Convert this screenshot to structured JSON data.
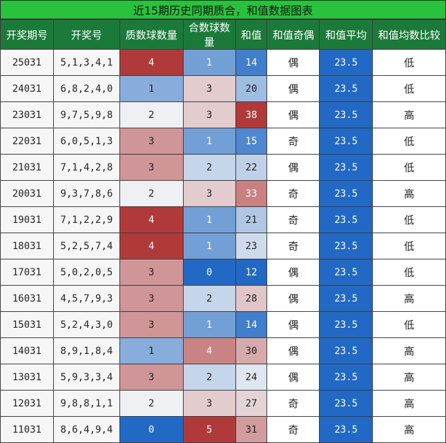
{
  "title": "近15期历史同期质合，和值数据图表",
  "columns": [
    "开奖期号",
    "开奖号",
    "质数球数量",
    "合数球数量",
    "和值",
    "和值奇偶",
    "和值平均",
    "和值均数比较"
  ],
  "colors": {
    "header_bg": "#1b7a3a",
    "title_bg": "#28c23c",
    "avg_bg": "#2169c5",
    "scale_low": "#2169c5",
    "scale_mid": "#eef0f3",
    "scale_high": "#b03a3a"
  },
  "chart_data": {
    "type": "table",
    "title": "近15期历史同期质合，和值数据图表",
    "columns": [
      "开奖期号",
      "开奖号",
      "质数球数量",
      "合数球数量",
      "和值",
      "和值奇偶",
      "和值平均",
      "和值均数比较"
    ],
    "rows": [
      {
        "issue": "25031",
        "numbers": "5,1,3,4,1",
        "prime": 4,
        "composite": 1,
        "sum": 14,
        "parity": "偶",
        "avg": "23.5",
        "compare": "低"
      },
      {
        "issue": "24031",
        "numbers": "6,8,2,4,0",
        "prime": 1,
        "composite": 3,
        "sum": 20,
        "parity": "偶",
        "avg": "23.5",
        "compare": "低"
      },
      {
        "issue": "23031",
        "numbers": "9,7,5,9,8",
        "prime": 2,
        "composite": 3,
        "sum": 38,
        "parity": "偶",
        "avg": "23.5",
        "compare": "高"
      },
      {
        "issue": "22031",
        "numbers": "6,0,5,1,3",
        "prime": 3,
        "composite": 1,
        "sum": 15,
        "parity": "奇",
        "avg": "23.5",
        "compare": "低"
      },
      {
        "issue": "21031",
        "numbers": "7,1,4,2,8",
        "prime": 3,
        "composite": 2,
        "sum": 22,
        "parity": "偶",
        "avg": "23.5",
        "compare": "低"
      },
      {
        "issue": "20031",
        "numbers": "9,3,7,8,6",
        "prime": 2,
        "composite": 3,
        "sum": 33,
        "parity": "奇",
        "avg": "23.5",
        "compare": "高"
      },
      {
        "issue": "19031",
        "numbers": "7,1,2,2,9",
        "prime": 4,
        "composite": 1,
        "sum": 21,
        "parity": "奇",
        "avg": "23.5",
        "compare": "低"
      },
      {
        "issue": "18031",
        "numbers": "5,2,5,7,4",
        "prime": 4,
        "composite": 1,
        "sum": 23,
        "parity": "奇",
        "avg": "23.5",
        "compare": "低"
      },
      {
        "issue": "17031",
        "numbers": "5,0,2,0,5",
        "prime": 3,
        "composite": 0,
        "sum": 12,
        "parity": "偶",
        "avg": "23.5",
        "compare": "低"
      },
      {
        "issue": "16031",
        "numbers": "4,5,7,9,3",
        "prime": 3,
        "composite": 2,
        "sum": 28,
        "parity": "偶",
        "avg": "23.5",
        "compare": "高"
      },
      {
        "issue": "15031",
        "numbers": "5,2,4,3,0",
        "prime": 3,
        "composite": 1,
        "sum": 14,
        "parity": "偶",
        "avg": "23.5",
        "compare": "低"
      },
      {
        "issue": "14031",
        "numbers": "8,9,1,8,4",
        "prime": 1,
        "composite": 4,
        "sum": 30,
        "parity": "偶",
        "avg": "23.5",
        "compare": "高"
      },
      {
        "issue": "13031",
        "numbers": "5,9,3,3,4",
        "prime": 3,
        "composite": 2,
        "sum": 24,
        "parity": "偶",
        "avg": "23.5",
        "compare": "高"
      },
      {
        "issue": "12031",
        "numbers": "9,8,8,1,1",
        "prime": 2,
        "composite": 3,
        "sum": 27,
        "parity": "奇",
        "avg": "23.5",
        "compare": "高"
      },
      {
        "issue": "11031",
        "numbers": "8,6,4,9,4",
        "prime": 0,
        "composite": 5,
        "sum": 31,
        "parity": "奇",
        "avg": "23.5",
        "compare": "高"
      }
    ]
  }
}
